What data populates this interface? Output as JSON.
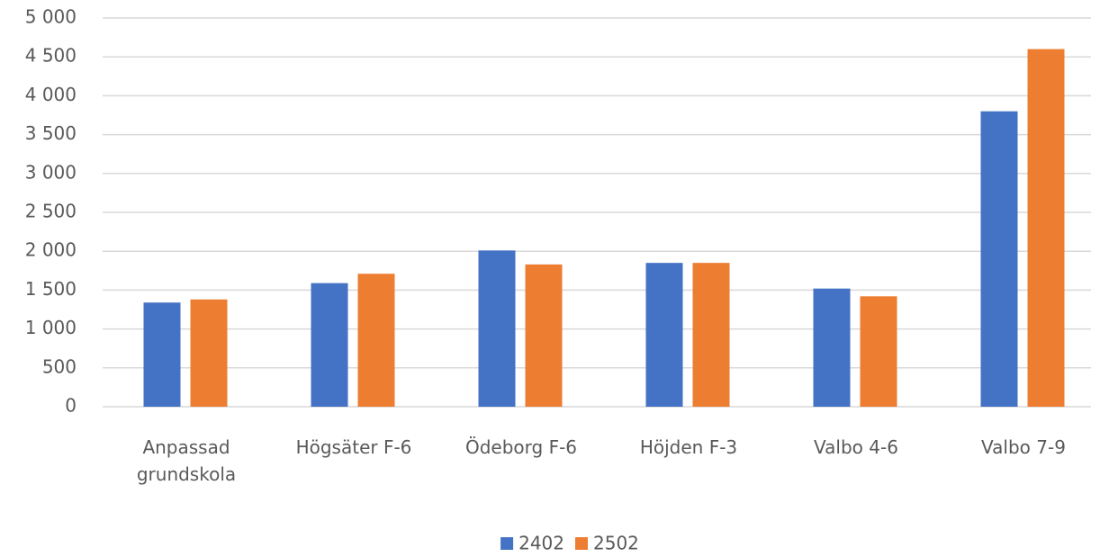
{
  "chart_data": {
    "type": "bar",
    "categories": [
      "Anpassad grundskola",
      "Högsäter F-6",
      "Ödeborg F-6",
      "Höjden F-3",
      "Valbo 4-6",
      "Valbo 7-9"
    ],
    "series": [
      {
        "name": "2402",
        "color": "#4472c4",
        "values": [
          1340,
          1590,
          2010,
          1850,
          1520,
          3800
        ]
      },
      {
        "name": "2502",
        "color": "#ed7d31",
        "values": [
          1380,
          1710,
          1830,
          1850,
          1420,
          4600
        ]
      }
    ],
    "ylim": [
      0,
      5000
    ],
    "yticks": [
      0,
      500,
      {
        "value": 1000,
        "label": "1 000"
      },
      {
        "value": 1500,
        "label": "1 500"
      },
      {
        "value": 2000,
        "label": "2 000"
      },
      {
        "value": 2500,
        "label": "2 500"
      },
      {
        "value": 3000,
        "label": "3 000"
      },
      {
        "value": 3500,
        "label": "3 500"
      },
      {
        "value": 4000,
        "label": "4 000"
      },
      {
        "value": 4500,
        "label": "4 500"
      },
      {
        "value": 5000,
        "label": "5 000"
      }
    ],
    "grid": true,
    "legend": "bottom"
  }
}
